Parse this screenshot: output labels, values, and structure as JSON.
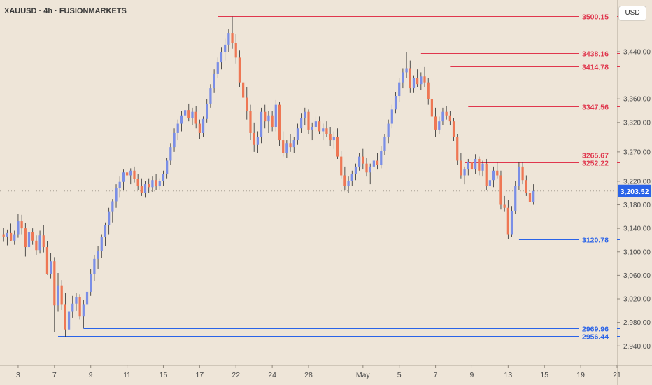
{
  "header": {
    "symbol_title": "XAUUSD · 4h · FUSIONMARKETS"
  },
  "currency_button": {
    "label": "USD"
  },
  "colors": {
    "up": "#7A8EE6",
    "down": "#EE7754",
    "resistance": "#E0364D",
    "support": "#2A63E8",
    "background": "#EEE5D8"
  },
  "chart_data": {
    "type": "candlestick",
    "y_axis": {
      "side": "right",
      "ylim": [
        2907,
        3528
      ],
      "ticks": [
        {
          "value": 3440,
          "label": "3,440.00"
        },
        {
          "value": 3360,
          "label": "3,360.00"
        },
        {
          "value": 3320,
          "label": "3,320.00"
        },
        {
          "value": 3270,
          "label": "3,270.00"
        },
        {
          "value": 3220,
          "label": "3,220.00"
        },
        {
          "value": 3180,
          "label": "3,180.00"
        },
        {
          "value": 3140,
          "label": "3,140.00"
        },
        {
          "value": 3100,
          "label": "3,100.00"
        },
        {
          "value": 3060,
          "label": "3,060.00"
        },
        {
          "value": 3020,
          "label": "3,020.00"
        },
        {
          "value": 2980,
          "label": "2,980.00"
        },
        {
          "value": 2940,
          "label": "2,940.00"
        }
      ]
    },
    "x_axis": {
      "bar_range": [
        -1,
        169
      ],
      "ticks": [
        {
          "bar": 4,
          "label": "3"
        },
        {
          "bar": 14,
          "label": "7"
        },
        {
          "bar": 24,
          "label": "9"
        },
        {
          "bar": 34,
          "label": "11"
        },
        {
          "bar": 44,
          "label": "15"
        },
        {
          "bar": 54,
          "label": "17"
        },
        {
          "bar": 64,
          "label": "22"
        },
        {
          "bar": 74,
          "label": "24"
        },
        {
          "bar": 84,
          "label": "28"
        },
        {
          "bar": 99,
          "label": "May"
        },
        {
          "bar": 109,
          "label": "5"
        },
        {
          "bar": 119,
          "label": "7"
        },
        {
          "bar": 129,
          "label": "9"
        },
        {
          "bar": 139,
          "label": "13"
        },
        {
          "bar": 149,
          "label": "15"
        },
        {
          "bar": 159,
          "label": "19"
        },
        {
          "bar": 169,
          "label": "21"
        }
      ]
    },
    "last_price": {
      "value": 3203.52,
      "label": "3,203.52"
    },
    "levels": [
      {
        "price": 3500.15,
        "label": "3500.15",
        "kind": "resistance",
        "from_bar": 59
      },
      {
        "price": 3438.16,
        "label": "3438.16",
        "kind": "resistance",
        "from_bar": 115
      },
      {
        "price": 3414.78,
        "label": "3414.78",
        "kind": "resistance",
        "from_bar": 123
      },
      {
        "price": 3347.56,
        "label": "3347.56",
        "kind": "resistance",
        "from_bar": 128
      },
      {
        "price": 3265.67,
        "label": "3265.67",
        "kind": "resistance",
        "from_bar": 135
      },
      {
        "price": 3252.22,
        "label": "3252.22",
        "kind": "resistance",
        "from_bar": 127
      },
      {
        "price": 3120.78,
        "label": "3120.78",
        "kind": "support",
        "from_bar": 142
      },
      {
        "price": 2969.96,
        "label": "2969.96",
        "kind": "support",
        "from_bar": 22
      },
      {
        "price": 2956.44,
        "label": "2956.44",
        "kind": "support",
        "from_bar": 15
      }
    ],
    "candles": [
      [
        3130,
        3141,
        3117,
        3126
      ],
      [
        3126,
        3138,
        3111,
        3132
      ],
      [
        3132,
        3148,
        3118,
        3119
      ],
      [
        3119,
        3136,
        3112,
        3130
      ],
      [
        3130,
        3165,
        3124,
        3152
      ],
      [
        3152,
        3163,
        3130,
        3140
      ],
      [
        3140,
        3149,
        3092,
        3108
      ],
      [
        3108,
        3143,
        3101,
        3133
      ],
      [
        3133,
        3140,
        3112,
        3119
      ],
      [
        3119,
        3128,
        3095,
        3103
      ],
      [
        3103,
        3136,
        3097,
        3128
      ],
      [
        3128,
        3145,
        3099,
        3108
      ],
      [
        3108,
        3118,
        3061,
        3062
      ],
      [
        3062,
        3098,
        3055,
        3084
      ],
      [
        3084,
        3091,
        2964,
        3009
      ],
      [
        3009,
        3064,
        2998,
        3043
      ],
      [
        3043,
        3052,
        3001,
        3010
      ],
      [
        3010,
        3030,
        2956,
        2968
      ],
      [
        2968,
        3012,
        2958,
        2998
      ],
      [
        2998,
        3025,
        2988,
        3012
      ],
      [
        3012,
        3030,
        3000,
        3023
      ],
      [
        3023,
        3028,
        2985,
        2990
      ],
      [
        2990,
        3018,
        2970,
        3010
      ],
      [
        3010,
        3040,
        3000,
        3032
      ],
      [
        3032,
        3070,
        3025,
        3062
      ],
      [
        3062,
        3095,
        3050,
        3088
      ],
      [
        3088,
        3110,
        3070,
        3102
      ],
      [
        3102,
        3130,
        3090,
        3125
      ],
      [
        3125,
        3150,
        3110,
        3145
      ],
      [
        3145,
        3175,
        3130,
        3168
      ],
      [
        3168,
        3190,
        3150,
        3186
      ],
      [
        3186,
        3215,
        3175,
        3208
      ],
      [
        3208,
        3228,
        3192,
        3219
      ],
      [
        3219,
        3240,
        3205,
        3235
      ],
      [
        3235,
        3245,
        3222,
        3230
      ],
      [
        3230,
        3242,
        3215,
        3238
      ],
      [
        3238,
        3245,
        3218,
        3224
      ],
      [
        3224,
        3232,
        3205,
        3212
      ],
      [
        3212,
        3225,
        3195,
        3200
      ],
      [
        3200,
        3220,
        3192,
        3215
      ],
      [
        3215,
        3225,
        3200,
        3210
      ],
      [
        3210,
        3228,
        3202,
        3222
      ],
      [
        3222,
        3232,
        3205,
        3212
      ],
      [
        3212,
        3225,
        3205,
        3220
      ],
      [
        3220,
        3238,
        3212,
        3232
      ],
      [
        3232,
        3260,
        3225,
        3255
      ],
      [
        3255,
        3285,
        3248,
        3278
      ],
      [
        3278,
        3310,
        3270,
        3302
      ],
      [
        3302,
        3325,
        3290,
        3318
      ],
      [
        3318,
        3340,
        3305,
        3332
      ],
      [
        3332,
        3350,
        3320,
        3341
      ],
      [
        3341,
        3352,
        3322,
        3328
      ],
      [
        3328,
        3345,
        3315,
        3338
      ],
      [
        3338,
        3348,
        3310,
        3318
      ],
      [
        3318,
        3325,
        3292,
        3302
      ],
      [
        3302,
        3330,
        3295,
        3326
      ],
      [
        3326,
        3360,
        3320,
        3352
      ],
      [
        3352,
        3385,
        3345,
        3378
      ],
      [
        3378,
        3410,
        3370,
        3402
      ],
      [
        3402,
        3430,
        3395,
        3422
      ],
      [
        3422,
        3448,
        3410,
        3440
      ],
      [
        3440,
        3462,
        3425,
        3452
      ],
      [
        3452,
        3478,
        3440,
        3472
      ],
      [
        3472,
        3500,
        3445,
        3455
      ],
      [
        3455,
        3470,
        3420,
        3430
      ],
      [
        3430,
        3442,
        3380,
        3388
      ],
      [
        3388,
        3405,
        3350,
        3362
      ],
      [
        3362,
        3380,
        3325,
        3340
      ],
      [
        3340,
        3350,
        3290,
        3302
      ],
      [
        3302,
        3320,
        3270,
        3282
      ],
      [
        3282,
        3305,
        3268,
        3295
      ],
      [
        3295,
        3345,
        3285,
        3338
      ],
      [
        3338,
        3350,
        3310,
        3322
      ],
      [
        3322,
        3340,
        3302,
        3332
      ],
      [
        3332,
        3340,
        3305,
        3312
      ],
      [
        3312,
        3358,
        3305,
        3350
      ],
      [
        3350,
        3355,
        3280,
        3290
      ],
      [
        3290,
        3305,
        3262,
        3268
      ],
      [
        3268,
        3290,
        3260,
        3285
      ],
      [
        3285,
        3300,
        3270,
        3278
      ],
      [
        3278,
        3296,
        3268,
        3290
      ],
      [
        3290,
        3318,
        3282,
        3310
      ],
      [
        3310,
        3335,
        3302,
        3328
      ],
      [
        3328,
        3345,
        3315,
        3338
      ],
      [
        3338,
        3342,
        3300,
        3308
      ],
      [
        3308,
        3320,
        3290,
        3312
      ],
      [
        3312,
        3330,
        3305,
        3322
      ],
      [
        3322,
        3330,
        3300,
        3305
      ],
      [
        3305,
        3318,
        3290,
        3310
      ],
      [
        3310,
        3322,
        3295,
        3300
      ],
      [
        3300,
        3312,
        3280,
        3290
      ],
      [
        3290,
        3305,
        3275,
        3296
      ],
      [
        3296,
        3310,
        3258,
        3262
      ],
      [
        3262,
        3272,
        3225,
        3230
      ],
      [
        3230,
        3245,
        3205,
        3212
      ],
      [
        3212,
        3228,
        3200,
        3220
      ],
      [
        3220,
        3238,
        3212,
        3232
      ],
      [
        3232,
        3250,
        3222,
        3245
      ],
      [
        3245,
        3268,
        3238,
        3262
      ],
      [
        3262,
        3275,
        3240,
        3250
      ],
      [
        3250,
        3260,
        3228,
        3235
      ],
      [
        3235,
        3250,
        3215,
        3245
      ],
      [
        3245,
        3262,
        3238,
        3255
      ],
      [
        3255,
        3268,
        3240,
        3248
      ],
      [
        3248,
        3280,
        3242,
        3272
      ],
      [
        3272,
        3300,
        3265,
        3295
      ],
      [
        3295,
        3325,
        3285,
        3318
      ],
      [
        3318,
        3350,
        3310,
        3342
      ],
      [
        3342,
        3372,
        3335,
        3365
      ],
      [
        3365,
        3395,
        3355,
        3388
      ],
      [
        3388,
        3412,
        3378,
        3405
      ],
      [
        3405,
        3440,
        3395,
        3412
      ],
      [
        3412,
        3425,
        3370,
        3378
      ],
      [
        3378,
        3400,
        3370,
        3395
      ],
      [
        3395,
        3410,
        3380,
        3385
      ],
      [
        3385,
        3405,
        3375,
        3398
      ],
      [
        3398,
        3414,
        3380,
        3388
      ],
      [
        3388,
        3395,
        3350,
        3360
      ],
      [
        3360,
        3372,
        3320,
        3330
      ],
      [
        3330,
        3345,
        3295,
        3308
      ],
      [
        3308,
        3330,
        3300,
        3322
      ],
      [
        3322,
        3345,
        3315,
        3338
      ],
      [
        3338,
        3348,
        3325,
        3332
      ],
      [
        3332,
        3340,
        3315,
        3322
      ],
      [
        3322,
        3328,
        3288,
        3295
      ],
      [
        3295,
        3300,
        3248,
        3255
      ],
      [
        3255,
        3268,
        3225,
        3230
      ],
      [
        3230,
        3245,
        3215,
        3240
      ],
      [
        3240,
        3258,
        3230,
        3252
      ],
      [
        3252,
        3262,
        3235,
        3240
      ],
      [
        3240,
        3266,
        3232,
        3258
      ],
      [
        3258,
        3262,
        3230,
        3238
      ],
      [
        3238,
        3255,
        3228,
        3250
      ],
      [
        3250,
        3258,
        3205,
        3212
      ],
      [
        3212,
        3230,
        3195,
        3222
      ],
      [
        3222,
        3245,
        3210,
        3238
      ],
      [
        3238,
        3252,
        3225,
        3230
      ],
      [
        3230,
        3238,
        3172,
        3180
      ],
      [
        3180,
        3195,
        3168,
        3175
      ],
      [
        3175,
        3188,
        3122,
        3130
      ],
      [
        3130,
        3178,
        3125,
        3170
      ],
      [
        3170,
        3220,
        3165,
        3212
      ],
      [
        3212,
        3252,
        3205,
        3245
      ],
      [
        3245,
        3252,
        3215,
        3222
      ],
      [
        3222,
        3230,
        3195,
        3200
      ],
      [
        3200,
        3215,
        3165,
        3185
      ],
      [
        3185,
        3215,
        3180,
        3203.52
      ]
    ]
  }
}
